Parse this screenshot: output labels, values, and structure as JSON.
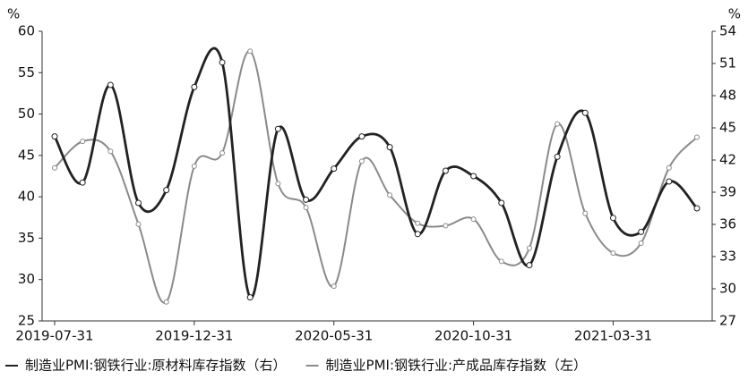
{
  "chart_data": {
    "type": "line",
    "categories": [
      "2019-07-31",
      null,
      null,
      null,
      null,
      "2019-12-31",
      null,
      null,
      null,
      null,
      "2020-05-31",
      null,
      null,
      null,
      null,
      "2020-10-31",
      null,
      null,
      null,
      null,
      "2021-03-31",
      null,
      null,
      null
    ],
    "ylabel": "%",
    "y2label": "%",
    "ylim": [
      25,
      60
    ],
    "yticks": [
      25,
      30,
      35,
      40,
      45,
      50,
      55,
      60
    ],
    "y2lim": [
      27,
      54
    ],
    "y2ticks": [
      27,
      30,
      33,
      36,
      39,
      42,
      45,
      48,
      51,
      54
    ],
    "legend": "bottom",
    "series": [
      {
        "name": "制造业PMI:钢铁行业:原材料库存指数（右）",
        "color": "#222222",
        "axis": "y2",
        "values": [
          44.2,
          39.9,
          49.0,
          38.0,
          39.2,
          48.8,
          51.1,
          29.2,
          44.9,
          38.3,
          41.2,
          44.2,
          43.2,
          35.1,
          41.0,
          40.5,
          38.0,
          32.2,
          42.3,
          46.4,
          36.6,
          35.3,
          40.0,
          37.5
        ]
      },
      {
        "name": "制造业PMI:钢铁行业:产成品库存指数（左）",
        "color": "#8a8a8a",
        "values": [
          43.5,
          46.7,
          45.5,
          36.7,
          27.3,
          43.7,
          45.3,
          57.6,
          41.6,
          38.7,
          29.2,
          44.3,
          40.2,
          36.8,
          36.5,
          37.3,
          32.2,
          33.8,
          48.8,
          38.0,
          33.2,
          34.4,
          43.5,
          47.2
        ]
      }
    ]
  }
}
